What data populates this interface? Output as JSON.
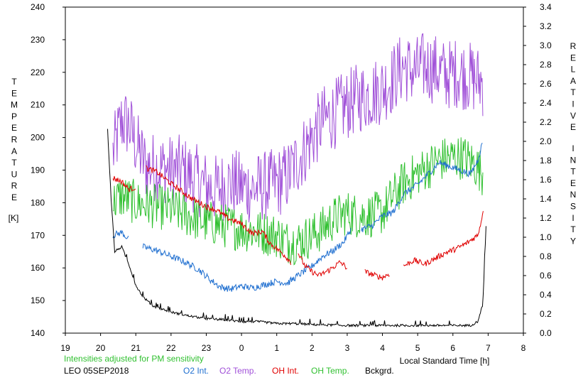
{
  "chart_data": {
    "type": "line",
    "left_axis": {
      "label_letters": [
        "T",
        "E",
        "M",
        "P",
        "E",
        "R",
        "A",
        "T",
        "U",
        "R",
        "E"
      ],
      "unit": "[K]",
      "ylim": [
        140,
        240
      ],
      "ticks": [
        "140",
        "150",
        "160",
        "170",
        "180",
        "190",
        "200",
        "210",
        "220",
        "230",
        "240"
      ]
    },
    "right_axis": {
      "label_letters_1": [
        "R",
        "E",
        "L",
        "A",
        "T",
        "I",
        "V",
        "E"
      ],
      "label_letters_2": [
        "I",
        "N",
        "T",
        "E",
        "N",
        "S",
        "I",
        "T",
        "Y"
      ],
      "ylim": [
        0.0,
        3.4
      ],
      "ticks": [
        "0.0",
        "0.2",
        "0.4",
        "0.6",
        "0.8",
        "1.0",
        "1.2",
        "1.4",
        "1.6",
        "1.8",
        "2.0",
        "2.2",
        "2.4",
        "2.6",
        "2.8",
        "3.0",
        "3.2",
        "3.4"
      ]
    },
    "x_axis": {
      "label": "Local Standard Time [h]",
      "xlim": [
        19,
        32
      ],
      "tick_values": [
        19,
        20,
        21,
        22,
        23,
        24,
        25,
        26,
        27,
        28,
        29,
        30,
        31,
        32
      ],
      "tick_labels": [
        "19",
        "20",
        "21",
        "22",
        "23",
        "0",
        "1",
        "2",
        "3",
        "4",
        "5",
        "6",
        "7",
        "8"
      ]
    },
    "note": "Intensities adjusted for PM sensitivity",
    "station": "LEO 05SEP2018",
    "legend": [
      {
        "name": "O2 Int.",
        "color": "#1f6fd0"
      },
      {
        "name": "O2 Temp.",
        "color": "#a050d8"
      },
      {
        "name": "OH Int.",
        "color": "#e00000"
      },
      {
        "name": "OH Temp.",
        "color": "#30c030"
      },
      {
        "name": "Bckgrd.",
        "color": "#000000"
      }
    ],
    "series": [
      {
        "name": "O2 Temp.",
        "axis": "left",
        "color": "#a050d8",
        "noise": 11,
        "points": [
          [
            20.35,
            195
          ],
          [
            20.6,
            205
          ],
          [
            20.8,
            204
          ],
          [
            21.0,
            198
          ],
          [
            21.3,
            191
          ],
          [
            21.6,
            191
          ],
          [
            22.0,
            190
          ],
          [
            22.3,
            190
          ],
          [
            22.6,
            188
          ],
          [
            23.0,
            185
          ],
          [
            23.3,
            184
          ],
          [
            23.6,
            186
          ],
          [
            24.0,
            185
          ],
          [
            24.3,
            184
          ],
          [
            24.6,
            185
          ],
          [
            25.0,
            186
          ],
          [
            25.3,
            188
          ],
          [
            25.6,
            193
          ],
          [
            26.0,
            200
          ],
          [
            26.3,
            205
          ],
          [
            26.6,
            207
          ],
          [
            27.0,
            210
          ],
          [
            27.3,
            212
          ],
          [
            27.6,
            213
          ],
          [
            28.0,
            215
          ],
          [
            28.3,
            218
          ],
          [
            28.6,
            222
          ],
          [
            28.9,
            220
          ],
          [
            29.2,
            222
          ],
          [
            29.5,
            221
          ],
          [
            29.8,
            219
          ],
          [
            30.1,
            220
          ],
          [
            30.4,
            219
          ],
          [
            30.6,
            218
          ],
          [
            30.85,
            217
          ]
        ]
      },
      {
        "name": "OH Temp.",
        "axis": "left",
        "color": "#30c030",
        "noise": 7,
        "points": [
          [
            20.35,
            180
          ],
          [
            20.6,
            182
          ],
          [
            21.0,
            180
          ],
          [
            21.5,
            179
          ],
          [
            22.0,
            178
          ],
          [
            22.5,
            176
          ],
          [
            23.0,
            174
          ],
          [
            23.5,
            173
          ],
          [
            24.0,
            172
          ],
          [
            24.5,
            171
          ],
          [
            25.0,
            170
          ],
          [
            25.3,
            168
          ],
          [
            25.6,
            168
          ],
          [
            26.0,
            170
          ],
          [
            26.3,
            172
          ],
          [
            26.6,
            175
          ],
          [
            27.0,
            177
          ],
          [
            27.3,
            176
          ],
          [
            27.6,
            176
          ],
          [
            28.0,
            177
          ],
          [
            28.3,
            182
          ],
          [
            28.6,
            186
          ],
          [
            29.0,
            189
          ],
          [
            29.3,
            191
          ],
          [
            29.6,
            193
          ],
          [
            30.0,
            194
          ],
          [
            30.3,
            194
          ],
          [
            30.6,
            192
          ],
          [
            30.85,
            189
          ]
        ]
      },
      {
        "name": "O2 Int.",
        "axis": "right",
        "color": "#1f6fd0",
        "noise": 0.035,
        "segments": [
          [
            [
              20.35,
              1.02
            ],
            [
              20.6,
              1.05
            ],
            [
              20.8,
              0.98
            ]
          ],
          [
            [
              21.2,
              0.9
            ],
            [
              21.6,
              0.86
            ],
            [
              22.0,
              0.8
            ],
            [
              22.4,
              0.74
            ],
            [
              22.8,
              0.66
            ],
            [
              23.1,
              0.56
            ],
            [
              23.4,
              0.48
            ],
            [
              23.7,
              0.46
            ],
            [
              24.0,
              0.49
            ],
            [
              24.3,
              0.47
            ],
            [
              24.6,
              0.5
            ],
            [
              25.0,
              0.54
            ],
            [
              25.3,
              0.52
            ],
            [
              25.6,
              0.6
            ],
            [
              26.0,
              0.7
            ],
            [
              26.3,
              0.8
            ],
            [
              26.6,
              0.86
            ],
            [
              26.9,
              0.95
            ],
            [
              27.1,
              1.08
            ]
          ],
          [
            [
              27.4,
              1.08
            ],
            [
              27.7,
              1.12
            ],
            [
              28.0,
              1.22
            ],
            [
              28.3,
              1.26
            ],
            [
              28.6,
              1.45
            ],
            [
              29.0,
              1.55
            ],
            [
              29.3,
              1.66
            ],
            [
              29.6,
              1.78
            ],
            [
              29.9,
              1.74
            ],
            [
              30.2,
              1.7
            ],
            [
              30.5,
              1.66
            ],
            [
              30.7,
              1.8
            ],
            [
              30.85,
              2.0
            ]
          ]
        ]
      },
      {
        "name": "OH Int.",
        "axis": "right",
        "color": "#e00000",
        "noise": 0.03,
        "segments": [
          [
            [
              20.35,
              1.62
            ],
            [
              20.6,
              1.58
            ],
            [
              20.8,
              1.5
            ],
            [
              21.0,
              1.52
            ]
          ],
          [
            [
              21.3,
              1.72
            ],
            [
              21.6,
              1.68
            ],
            [
              22.0,
              1.56
            ],
            [
              22.3,
              1.48
            ],
            [
              22.6,
              1.4
            ],
            [
              23.0,
              1.32
            ],
            [
              23.3,
              1.28
            ],
            [
              23.6,
              1.2
            ],
            [
              24.0,
              1.14
            ],
            [
              24.3,
              1.04
            ],
            [
              24.6,
              1.06
            ],
            [
              24.8,
              0.94
            ],
            [
              25.2,
              0.82
            ],
            [
              25.4,
              0.74
            ]
          ],
          [
            [
              25.6,
              0.84
            ],
            [
              25.8,
              0.7
            ],
            [
              26.0,
              0.64
            ],
            [
              26.2,
              0.6
            ],
            [
              26.5,
              0.66
            ],
            [
              26.8,
              0.74
            ],
            [
              27.0,
              0.68
            ]
          ],
          [
            [
              27.5,
              0.64
            ],
            [
              27.8,
              0.6
            ],
            [
              28.0,
              0.58
            ],
            [
              28.2,
              0.62
            ]
          ],
          [
            [
              28.6,
              0.7
            ],
            [
              28.9,
              0.76
            ],
            [
              29.2,
              0.72
            ],
            [
              29.5,
              0.78
            ],
            [
              29.8,
              0.84
            ],
            [
              30.1,
              0.88
            ],
            [
              30.4,
              0.94
            ],
            [
              30.7,
              1.02
            ],
            [
              30.8,
              1.16
            ],
            [
              30.87,
              1.32
            ]
          ]
        ]
      },
      {
        "name": "Bckgrd.",
        "axis": "right",
        "color": "#000000",
        "noise": 0.012,
        "points": [
          [
            20.2,
            2.12
          ],
          [
            20.3,
            1.4
          ],
          [
            20.4,
            0.85
          ],
          [
            20.6,
            0.9
          ],
          [
            20.8,
            0.72
          ],
          [
            21.0,
            0.5
          ],
          [
            21.2,
            0.38
          ],
          [
            21.5,
            0.28
          ],
          [
            22.0,
            0.22
          ],
          [
            22.5,
            0.18
          ],
          [
            23.0,
            0.15
          ],
          [
            23.5,
            0.14
          ],
          [
            24.0,
            0.12
          ],
          [
            24.5,
            0.12
          ],
          [
            25.0,
            0.1
          ],
          [
            25.5,
            0.1
          ],
          [
            26.0,
            0.09
          ],
          [
            27.0,
            0.08
          ],
          [
            28.0,
            0.08
          ],
          [
            29.0,
            0.08
          ],
          [
            30.0,
            0.08
          ],
          [
            30.5,
            0.08
          ],
          [
            30.7,
            0.12
          ],
          [
            30.85,
            0.3
          ],
          [
            30.95,
            1.2
          ]
        ]
      }
    ]
  }
}
